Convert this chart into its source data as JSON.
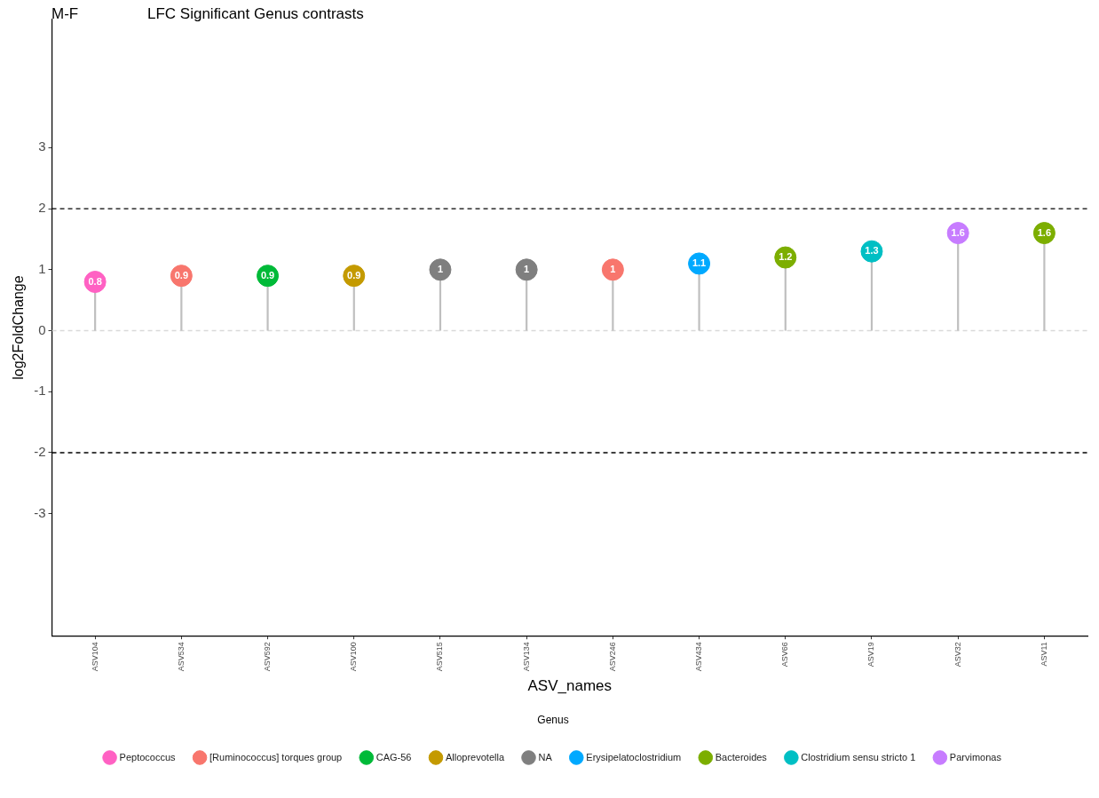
{
  "chart_data": {
    "type": "lollipop",
    "title": "LFC Significant Genus contrasts",
    "annotations": [
      "M-F"
    ],
    "xlabel": "ASV_names",
    "ylabel": "log2FoldChange",
    "legend_title": "Genus",
    "legend": "bottom",
    "grid": false,
    "data_labels": true,
    "marker": "circle",
    "categories": [
      "ASV104",
      "ASV534",
      "ASV592",
      "ASV100",
      "ASV515",
      "ASV134",
      "ASV246",
      "ASV434",
      "ASV66",
      "ASV19",
      "ASV32",
      "ASV11"
    ],
    "ylim": [
      -5,
      5.1
    ],
    "yticks": [
      -3,
      -2,
      -1,
      0,
      1,
      2,
      3
    ],
    "ref_lines": [
      {
        "axis": "y",
        "value": 2,
        "color": "#000000",
        "line_style": "dashed"
      },
      {
        "axis": "y",
        "value": -2,
        "color": "#000000",
        "line_style": "dashed"
      },
      {
        "axis": "y",
        "value": 0,
        "color": "#d9d9d9",
        "line_style": "dashed"
      }
    ],
    "series": [
      {
        "name": "Peptococcus",
        "color": "#ff61c3",
        "values": [
          0.8,
          null,
          null,
          null,
          null,
          null,
          null,
          null,
          null,
          null,
          null,
          null
        ]
      },
      {
        "name": "[Ruminococcus] torques group",
        "color": "#f8766d",
        "values": [
          null,
          0.9,
          null,
          null,
          null,
          null,
          1,
          null,
          null,
          null,
          null,
          null
        ]
      },
      {
        "name": "CAG-56",
        "color": "#00ba38",
        "values": [
          null,
          null,
          0.9,
          null,
          null,
          null,
          null,
          null,
          null,
          null,
          null,
          null
        ]
      },
      {
        "name": "Alloprevotella",
        "color": "#c49a00",
        "values": [
          null,
          null,
          null,
          0.9,
          null,
          null,
          null,
          null,
          null,
          null,
          null,
          null
        ]
      },
      {
        "name": "NA",
        "color": "#7f7f7f",
        "values": [
          null,
          null,
          null,
          null,
          1,
          1,
          null,
          null,
          null,
          null,
          null,
          null
        ]
      },
      {
        "name": "Erysipelatoclostridium",
        "color": "#00a9ff",
        "values": [
          null,
          null,
          null,
          null,
          null,
          null,
          null,
          1.1,
          null,
          null,
          null,
          null
        ]
      },
      {
        "name": "Bacteroides",
        "color": "#7cae00",
        "values": [
          null,
          null,
          null,
          null,
          null,
          null,
          null,
          null,
          1.2,
          null,
          null,
          1.6
        ]
      },
      {
        "name": "Clostridium sensu stricto 1",
        "color": "#00bfc4",
        "values": [
          null,
          null,
          null,
          null,
          null,
          null,
          null,
          null,
          null,
          1.3,
          null,
          null
        ]
      },
      {
        "name": "Parvimonas",
        "color": "#c77cff",
        "values": [
          null,
          null,
          null,
          null,
          null,
          null,
          null,
          null,
          null,
          null,
          1.6,
          null
        ]
      }
    ]
  }
}
